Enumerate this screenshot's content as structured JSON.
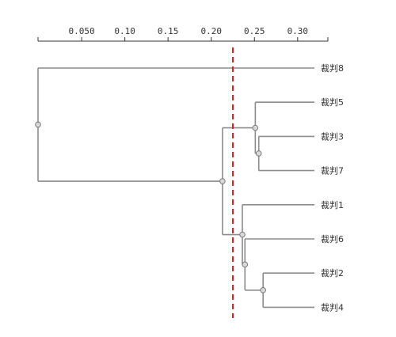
{
  "chart_data": {
    "type": "dendrogram",
    "title": "",
    "xlabel": "",
    "ylabel": "",
    "x_axis": {
      "position": "top",
      "ticks": [
        0.05,
        0.1,
        0.15,
        0.2,
        0.25,
        0.3
      ],
      "tick_labels": [
        "0.050",
        "0.10",
        "0.15",
        "0.20",
        "0.25",
        "0.30"
      ],
      "range": [
        -0.0005,
        0.335
      ]
    },
    "leaves": [
      "裁判8",
      "裁判5",
      "裁判3",
      "裁判7",
      "裁判1",
      "裁判6",
      "裁判2",
      "裁判4"
    ],
    "merges": [
      {
        "id": "n37",
        "children": [
          "裁判3",
          "裁判7"
        ],
        "distance": 0.255
      },
      {
        "id": "n537",
        "children": [
          "裁判5",
          "n37"
        ],
        "distance": 0.251
      },
      {
        "id": "n24",
        "children": [
          "裁判2",
          "裁判4"
        ],
        "distance": 0.26
      },
      {
        "id": "n624",
        "children": [
          "裁判6",
          "n24"
        ],
        "distance": 0.239
      },
      {
        "id": "n1624",
        "children": [
          "裁判1",
          "n624"
        ],
        "distance": 0.236
      },
      {
        "id": "n_mid",
        "children": [
          "n537",
          "n1624"
        ],
        "distance": 0.213
      },
      {
        "id": "root",
        "children": [
          "裁判8",
          "n_mid"
        ],
        "distance": -0.0005
      }
    ],
    "cut_line": {
      "x": 0.225,
      "style": "dashed",
      "color": "#e02020"
    },
    "colors": {
      "link": "#8c8c8c",
      "node_fill": "#d9d9d9",
      "node_stroke": "#707070",
      "axis": "#333333"
    }
  }
}
